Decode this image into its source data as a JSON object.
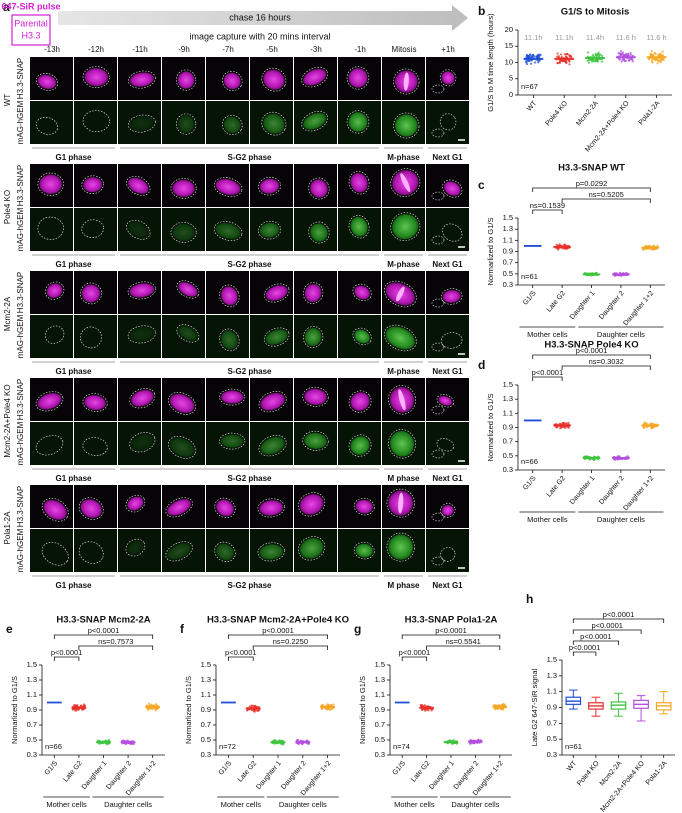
{
  "panel_a": {
    "label": "a",
    "pulse": "647-SiR pulse",
    "parental": [
      "Parental",
      "H3.3"
    ],
    "chase": "chase 16 hours",
    "capture": "image capture with 20 mins interval",
    "timepoints": [
      "-13h",
      "-12h",
      "-11h",
      "-9h",
      "-7h",
      "-5h",
      "-3h",
      "-1h",
      "Mitosis",
      "+1h"
    ],
    "rows": [
      {
        "strain": "WT",
        "channels": [
          "H3.3-SNAP",
          "mAG-hGEM"
        ],
        "phases": [
          "G1 phase",
          "S-G2 phase",
          "M-phase",
          "Next G1"
        ]
      },
      {
        "strain": "Pole4 KO",
        "channels": [
          "H3.3-SNAP",
          "mAG-hGEM"
        ],
        "phases": [
          "G1 phase",
          "S-G2 phase",
          "M-phase",
          "Next G1"
        ]
      },
      {
        "strain": "Mcm2-2A",
        "channels": [
          "H3.3-SNAP",
          "mAG-hGEM"
        ],
        "phases": [
          "G1 phase",
          "S-G2 phase",
          "M-phase",
          "Next G1"
        ]
      },
      {
        "strain": "Mcm2-2A+Pole4 KO",
        "channels": [
          "H3.3-SNAP",
          "mAG-hGEM"
        ],
        "phases": [
          "G1 phase",
          "S-G2 phase",
          "M phase",
          "Next G1"
        ]
      },
      {
        "strain": "Pola1-2A",
        "channels": [
          "H3.3-SNAP",
          "mAG-hGEM"
        ],
        "phases": [
          "G1 phase",
          "S-G2 phase",
          "M phase",
          "Next G1"
        ]
      }
    ]
  },
  "chart_data": [
    {
      "label": "b",
      "type": "strip",
      "title": "G1/S to Mitosis",
      "y_label": "G1/S to M time length (hours)",
      "categories": [
        "WT",
        "Pole4 KO",
        "Mcm2-2A",
        "Mcm2-2A+Pole4 KO",
        "Pola1-2A"
      ],
      "values": [
        11.1,
        11.1,
        11.4,
        11.6,
        11.6
      ],
      "value_labels": [
        "11.1h",
        "11.1h",
        "11.4h",
        "11.6 h",
        "11.6 h"
      ],
      "colors": [
        "#1f4fd8",
        "#e8302a",
        "#3ec43e",
        "#b44fe0",
        "#f5a623"
      ],
      "ylim": [
        0,
        20
      ],
      "yticks": [
        0,
        5,
        10,
        15,
        20
      ],
      "annotation": "n=67"
    },
    {
      "label": "c",
      "type": "dot",
      "title": "H3.3-SNAP WT",
      "y_label": "Normarlized to G1/S",
      "categories": [
        "G1/S",
        "Late G2",
        "Daughter 1",
        "Daughter 2",
        "Daughter 1+2"
      ],
      "values": [
        1.0,
        0.98,
        0.49,
        0.49,
        0.97
      ],
      "colors": [
        "#1f4fd8",
        "#e8302a",
        "#3ec43e",
        "#b44fe0",
        "#f5a623"
      ],
      "ylim": [
        0.3,
        1.5
      ],
      "yticks": [
        0.3,
        0.5,
        0.7,
        0.9,
        1.1,
        1.3,
        1.5
      ],
      "annotation": "n=61",
      "comparisons": [
        {
          "between": [
            "G1/S",
            "Late G2"
          ],
          "label": "ns=0.1539"
        },
        {
          "between": [
            "Late G2",
            "Daughter 1+2"
          ],
          "label": "ns=0.5205"
        },
        {
          "between": [
            "G1/S",
            "Daughter 1+2"
          ],
          "label": "p=0.0292"
        }
      ],
      "groups": [
        {
          "name": "Mother cells",
          "members": [
            "G1/S",
            "Late G2"
          ]
        },
        {
          "name": "Daughter cells",
          "members": [
            "Daughter 1",
            "Daughter 2",
            "Daughter 1+2"
          ]
        }
      ]
    },
    {
      "label": "d",
      "type": "dot",
      "title": "H3.3-SNAP Pole4 KO",
      "y_label": "Normarlized to G1/S",
      "categories": [
        "G1/S",
        "Late G2",
        "Daughter 1",
        "Daughter 2",
        "Daughter 1+2"
      ],
      "values": [
        1.0,
        0.93,
        0.47,
        0.47,
        0.93
      ],
      "colors": [
        "#1f4fd8",
        "#e8302a",
        "#3ec43e",
        "#b44fe0",
        "#f5a623"
      ],
      "ylim": [
        0.3,
        1.5
      ],
      "yticks": [
        0.3,
        0.5,
        0.7,
        0.9,
        1.1,
        1.3,
        1.5
      ],
      "annotation": "n=66",
      "comparisons": [
        {
          "between": [
            "G1/S",
            "Late G2"
          ],
          "label": "p<0.0001"
        },
        {
          "between": [
            "Late G2",
            "Daughter 1+2"
          ],
          "label": "ns=0.3032"
        },
        {
          "between": [
            "G1/S",
            "Daughter 1+2"
          ],
          "label": "p<0.0001"
        }
      ],
      "groups": [
        {
          "name": "Mother cells",
          "members": [
            "G1/S",
            "Late G2"
          ]
        },
        {
          "name": "Daughter cells",
          "members": [
            "Daughter 1",
            "Daughter 2",
            "Daughter 1+2"
          ]
        }
      ]
    },
    {
      "label": "e",
      "type": "dot",
      "title": "H3.3-SNAP Mcm2-2A",
      "y_label": "Normarlized to G1/S",
      "categories": [
        "G1/S",
        "Late G2",
        "Daughter 1",
        "Daughter 2",
        "Daughter 1+2"
      ],
      "values": [
        1.0,
        0.93,
        0.47,
        0.47,
        0.94
      ],
      "colors": [
        "#1f4fd8",
        "#e8302a",
        "#3ec43e",
        "#b44fe0",
        "#f5a623"
      ],
      "ylim": [
        0.3,
        1.5
      ],
      "yticks": [
        0.3,
        0.5,
        0.7,
        0.9,
        1.1,
        1.3,
        1.5
      ],
      "annotation": "n=66",
      "comparisons": [
        {
          "between": [
            "G1/S",
            "Late G2"
          ],
          "label": "p<0.0001"
        },
        {
          "between": [
            "Late G2",
            "Daughter 1+2"
          ],
          "label": "ns=0.7573"
        },
        {
          "between": [
            "G1/S",
            "Daughter 1+2"
          ],
          "label": "p<0.0001"
        }
      ],
      "groups": [
        {
          "name": "Mother cells",
          "members": [
            "G1/S",
            "Late G2"
          ]
        },
        {
          "name": "Daughter cells",
          "members": [
            "Daughter 1",
            "Daughter 2",
            "Daughter 1+2"
          ]
        }
      ]
    },
    {
      "label": "f",
      "type": "dot",
      "title": "H3.3-SNAP Mcm2-2A+Pole4 KO",
      "y_label": "Normarlized to G1/S",
      "categories": [
        "G1/S",
        "Late G2",
        "Daughter 1",
        "Daughter 2",
        "Daughter 1+2"
      ],
      "values": [
        1.0,
        0.92,
        0.47,
        0.47,
        0.94
      ],
      "colors": [
        "#1f4fd8",
        "#e8302a",
        "#3ec43e",
        "#b44fe0",
        "#f5a623"
      ],
      "ylim": [
        0.3,
        1.5
      ],
      "yticks": [
        0.3,
        0.5,
        0.7,
        0.9,
        1.1,
        1.3,
        1.5
      ],
      "annotation": "n=72",
      "comparisons": [
        {
          "between": [
            "G1/S",
            "Late G2"
          ],
          "label": "p<0.0001"
        },
        {
          "between": [
            "Late G2",
            "Daughter 1+2"
          ],
          "label": "ns=0.2250"
        },
        {
          "between": [
            "G1/S",
            "Daughter 1+2"
          ],
          "label": "p<0.0001"
        }
      ],
      "groups": [
        {
          "name": "Mother cells",
          "members": [
            "G1/S",
            "Late G2"
          ]
        },
        {
          "name": "Daughter cells",
          "members": [
            "Daughter 1",
            "Daughter 2",
            "Daughter 1+2"
          ]
        }
      ]
    },
    {
      "label": "g",
      "type": "dot",
      "title": "H3.3-SNAP Pola1-2A",
      "y_label": "Normarlized to G1/S",
      "categories": [
        "G1/S",
        "Late G2",
        "Daughter 1",
        "Daughter 2",
        "Daughter 1+2"
      ],
      "values": [
        1.0,
        0.93,
        0.47,
        0.48,
        0.94
      ],
      "colors": [
        "#1f4fd8",
        "#e8302a",
        "#3ec43e",
        "#b44fe0",
        "#f5a623"
      ],
      "ylim": [
        0.3,
        1.5
      ],
      "yticks": [
        0.3,
        0.5,
        0.7,
        0.9,
        1.1,
        1.3,
        1.5
      ],
      "annotation": "n=74",
      "comparisons": [
        {
          "between": [
            "G1/S",
            "Late G2"
          ],
          "label": "p<0.0001"
        },
        {
          "between": [
            "Late G2",
            "Daughter 1+2"
          ],
          "label": "ns=0.5541"
        },
        {
          "between": [
            "G1/S",
            "Daughter 1+2"
          ],
          "label": "p<0.0001"
        }
      ],
      "groups": [
        {
          "name": "Mother cells",
          "members": [
            "G1/S",
            "Late G2"
          ]
        },
        {
          "name": "Daughter cells",
          "members": [
            "Daughter 1",
            "Daughter 2",
            "Daughter 1+2"
          ]
        }
      ]
    },
    {
      "label": "h",
      "type": "box",
      "y_label": "Late G2  647-SiR signal",
      "categories": [
        "WT",
        "Pole4 KO",
        "Mcm2-2A",
        "Mcm2-2A+Pole4 KO",
        "Pola1-2A"
      ],
      "boxes": [
        {
          "min": 0.88,
          "q1": 0.94,
          "median": 0.98,
          "q3": 1.03,
          "max": 1.12
        },
        {
          "min": 0.79,
          "q1": 0.88,
          "median": 0.92,
          "q3": 0.96,
          "max": 1.03
        },
        {
          "min": 0.79,
          "q1": 0.88,
          "median": 0.93,
          "q3": 0.97,
          "max": 1.08
        },
        {
          "min": 0.73,
          "q1": 0.89,
          "median": 0.94,
          "q3": 0.99,
          "max": 1.05
        },
        {
          "min": 0.82,
          "q1": 0.87,
          "median": 0.92,
          "q3": 0.96,
          "max": 1.1
        }
      ],
      "colors": [
        "#1f4fd8",
        "#e8302a",
        "#3ec43e",
        "#b44fe0",
        "#f5a623"
      ],
      "ylim": [
        0.3,
        1.5
      ],
      "yticks": [
        0.3,
        0.5,
        0.7,
        0.9,
        1.1,
        1.3,
        1.5
      ],
      "annotation": "n=61",
      "comparisons": [
        {
          "between": [
            "WT",
            "Pole4 KO"
          ],
          "label": "p<0.0001"
        },
        {
          "between": [
            "WT",
            "Mcm2-2A"
          ],
          "label": "p<0.0001"
        },
        {
          "between": [
            "WT",
            "Mcm2-2A+Pole4 KO"
          ],
          "label": "p<0.0001"
        },
        {
          "between": [
            "WT",
            "Pola1-2A"
          ],
          "label": "p<0.0001"
        }
      ]
    }
  ]
}
